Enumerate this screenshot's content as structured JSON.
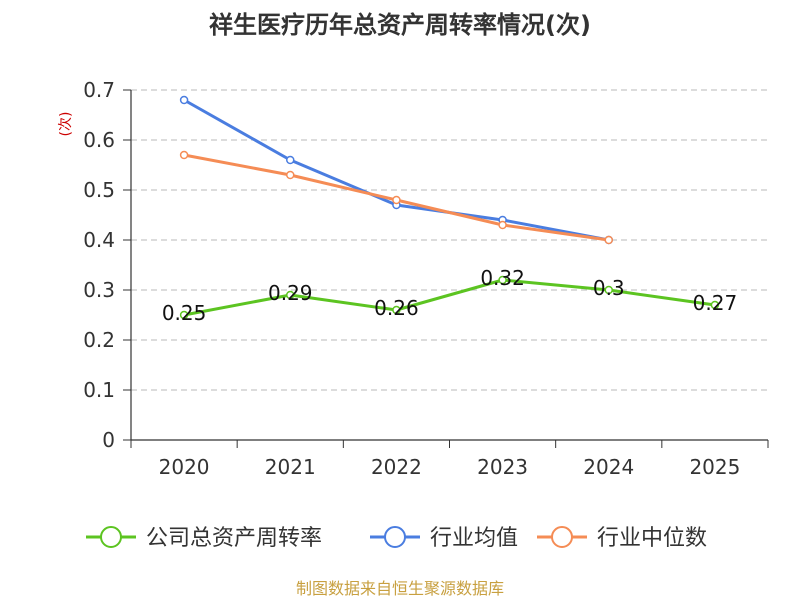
{
  "chart_data": {
    "type": "line",
    "title": "祥生医疗历年总资产周转率情况(次)",
    "ylabel": "(次)",
    "xlabel": "",
    "categories": [
      "2020",
      "2021",
      "2022",
      "2023",
      "2024",
      "2025"
    ],
    "ylim": [
      0,
      0.7
    ],
    "yticks": [
      0,
      0.1,
      0.2,
      0.3,
      0.4,
      0.5,
      0.6,
      0.7
    ],
    "ytick_labels": [
      "0",
      "0.1",
      "0.2",
      "0.3",
      "0.4",
      "0.5",
      "0.6",
      "0.7"
    ],
    "grid": true,
    "legend_position": "bottom",
    "series": [
      {
        "name": "公司总资产周转率",
        "color": "#5cc421",
        "values": [
          0.25,
          0.29,
          0.26,
          0.32,
          0.3,
          0.27
        ],
        "labels": [
          "0.25",
          "0.29",
          "0.26",
          "0.32",
          "0.3",
          "0.27"
        ],
        "show_labels": true
      },
      {
        "name": "行业均值",
        "color": "#4a7de0",
        "values": [
          0.68,
          0.56,
          0.47,
          0.44,
          0.4,
          null
        ],
        "show_labels": false
      },
      {
        "name": "行业中位数",
        "color": "#f58c55",
        "values": [
          0.57,
          0.53,
          0.48,
          0.43,
          0.4,
          null
        ],
        "show_labels": false
      }
    ],
    "source": "制图数据来自恒生聚源数据库"
  }
}
